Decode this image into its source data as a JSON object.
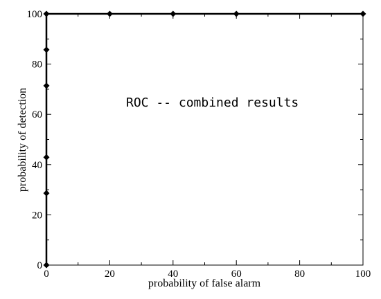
{
  "chart_data": {
    "type": "line",
    "title": "",
    "annotation": "ROC -- combined results",
    "xlabel": "probability of false alarm",
    "ylabel": "probability of detection",
    "xlim": [
      0,
      100
    ],
    "ylim": [
      0,
      100
    ],
    "xticks": [
      0,
      20,
      40,
      60,
      80,
      100
    ],
    "yticks": [
      0,
      20,
      40,
      60,
      80,
      100
    ],
    "minor_ticks_per_major": 1,
    "grid": false,
    "legend": "none",
    "series": [
      {
        "color": "#000000",
        "marker": "diamond",
        "x": [
          0,
          0,
          0,
          0,
          0,
          0,
          0,
          20,
          40,
          60,
          100
        ],
        "y": [
          0,
          28.6,
          42.9,
          71.4,
          85.7,
          100,
          100,
          100,
          100,
          100,
          100
        ]
      }
    ]
  }
}
